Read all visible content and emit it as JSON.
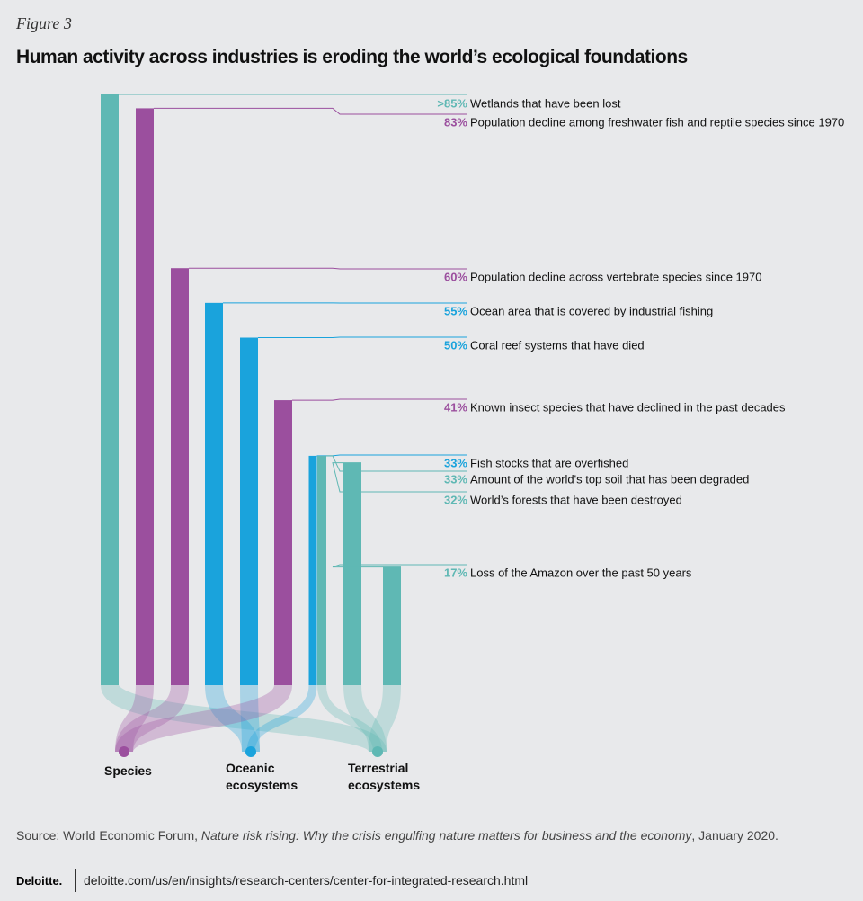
{
  "chart_data": {
    "type": "bar",
    "figure_label": "Figure 3",
    "title": "Human activity across industries is eroding the world’s ecological foundations",
    "categories": [
      "Wetlands that have been lost",
      "Population decline among freshwater fish and reptile species since 1970",
      "Population decline across vertebrate species since 1970",
      "Ocean area that is covered by industrial fishing",
      "Coral reef systems that have died",
      "Known insect species that have declined in the past decades",
      "Fish stocks that are overfished",
      "Amount of the world's top soil that has been degraded",
      "World’s forests that have been destroyed",
      "Loss of the Amazon over the past 50 years"
    ],
    "values": [
      85,
      83,
      60,
      55,
      50,
      41,
      33,
      33,
      32,
      17
    ],
    "value_labels": [
      ">85%",
      "83%",
      "60%",
      "55%",
      "50%",
      "41%",
      "33%",
      "33%",
      "32%",
      "17%"
    ],
    "colors": [
      "#5fb8b4",
      "#9b4f9e",
      "#9b4f9e",
      "#1aa3dc",
      "#1aa3dc",
      "#9b4f9e",
      "#1aa3dc",
      "#5fb8b4",
      "#5fb8b4",
      "#5fb8b4"
    ],
    "legend": [
      {
        "name": "Species",
        "color": "#9b4f9e"
      },
      {
        "name": "Oceanic ecosystems",
        "color": "#1aa3dc"
      },
      {
        "name": "Terrestrial ecosystems",
        "color": "#5fb8b4"
      }
    ]
  },
  "source": {
    "prefix": "Source: World Economic Forum, ",
    "title": "Nature risk rising: Why the crisis engulfing nature matters for business and the economy",
    "suffix": ", January 2020."
  },
  "footer": {
    "brand": "Deloitte.",
    "url": "deloitte.com/us/en/insights/research-centers/center-for-integrated-research.html"
  }
}
